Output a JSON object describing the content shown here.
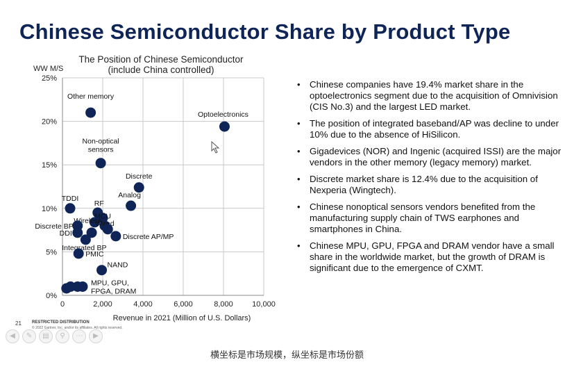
{
  "slide": {
    "title": "Chinese Semiconductor Share by Product Type",
    "page_number": "21",
    "restricted": "RESTRICTED DISTRIBUTION",
    "copyright": "© 2022 Gartner, Inc. and/or its affiliates. All rights reserved.",
    "bullets": [
      "Chinese companies have 19.4% market share in the optoelectronics segment due to the acquisition of Omnivision (CIS No.3) and the largest LED market.",
      "The position of integrated baseband/AP was decline to under 10% due to the absence of HiSilicon.",
      "Gigadevices (NOR) and Ingenic (acquired ISSI) are the major vendors in the other memory (legacy memory) market.",
      "Discrete market share is 12.4% due to the acquisition of Nexperia (Wingtech).",
      "Chinese nonoptical sensors vendors benefited from the manufacturing supply chain of TWS earphones and smartphones in China.",
      "Chinese MPU, GPU, FPGA and DRAM vendor have a small share in the worldwide market, but the growth of DRAM is significant due to the emergence of CXMT."
    ]
  },
  "caption": "横坐标是市场规模，纵坐标是市场份额",
  "colors": {
    "title": "#0f2557",
    "marker": "#0f2557",
    "grid": "#c8c8c8"
  },
  "chart_data": {
    "type": "scatter",
    "title": "The Position of Chinese Semiconductor\n(include China controlled)",
    "xlabel": "Revenue in 2021 (Million of U.S. Dollars)",
    "ylabel": "WW M/S",
    "xlim": [
      0,
      10000
    ],
    "ylim": [
      0,
      25
    ],
    "x_ticks": [
      0,
      2000,
      4000,
      6000,
      8000,
      10000
    ],
    "x_tick_labels": [
      "0",
      "2,000",
      "4,000",
      "6,000",
      "8,000",
      "10,000"
    ],
    "y_ticks": [
      0,
      5,
      10,
      15,
      20,
      25
    ],
    "y_tick_labels": [
      "0%",
      "5%",
      "10%",
      "15%",
      "20%",
      "25%"
    ],
    "grid": true,
    "points": [
      {
        "label": "Other memory",
        "x": 1400,
        "y": 21.0
      },
      {
        "label": "Optoelectronics",
        "x": 8050,
        "y": 19.4
      },
      {
        "label": "Non-optical\nsensors",
        "x": 1900,
        "y": 15.2
      },
      {
        "label": "Discrete",
        "x": 3800,
        "y": 12.4
      },
      {
        "label": "Analog",
        "x": 3400,
        "y": 10.3
      },
      {
        "label": "TDDI",
        "x": 380,
        "y": 10.0
      },
      {
        "label": "RF",
        "x": 1750,
        "y": 9.5
      },
      {
        "label": "MCU",
        "x": 2000,
        "y": 8.9
      },
      {
        "label": "Wireless",
        "x": 1600,
        "y": 8.4
      },
      {
        "label": "Wired",
        "x": 2100,
        "y": 8.0
      },
      {
        "label": "Discrete BP",
        "x": 750,
        "y": 8.0
      },
      {
        "label": "",
        "x": 2250,
        "y": 7.6
      },
      {
        "label": "DDI",
        "x": 750,
        "y": 7.2
      },
      {
        "label": "",
        "x": 1450,
        "y": 7.2
      },
      {
        "label": "Discrete AP/MP",
        "x": 2650,
        "y": 6.8
      },
      {
        "label": "Integrated BP",
        "x": 1150,
        "y": 6.4
      },
      {
        "label": "PMIC",
        "x": 800,
        "y": 4.8
      },
      {
        "label": "NAND",
        "x": 1950,
        "y": 2.9
      },
      {
        "label": "",
        "x": 200,
        "y": 0.8
      },
      {
        "label": "",
        "x": 400,
        "y": 1.0
      },
      {
        "label": "",
        "x": 750,
        "y": 1.0
      },
      {
        "label": "MPU, GPU,\nFPGA, DRAM",
        "x": 1000,
        "y": 1.0
      }
    ]
  }
}
